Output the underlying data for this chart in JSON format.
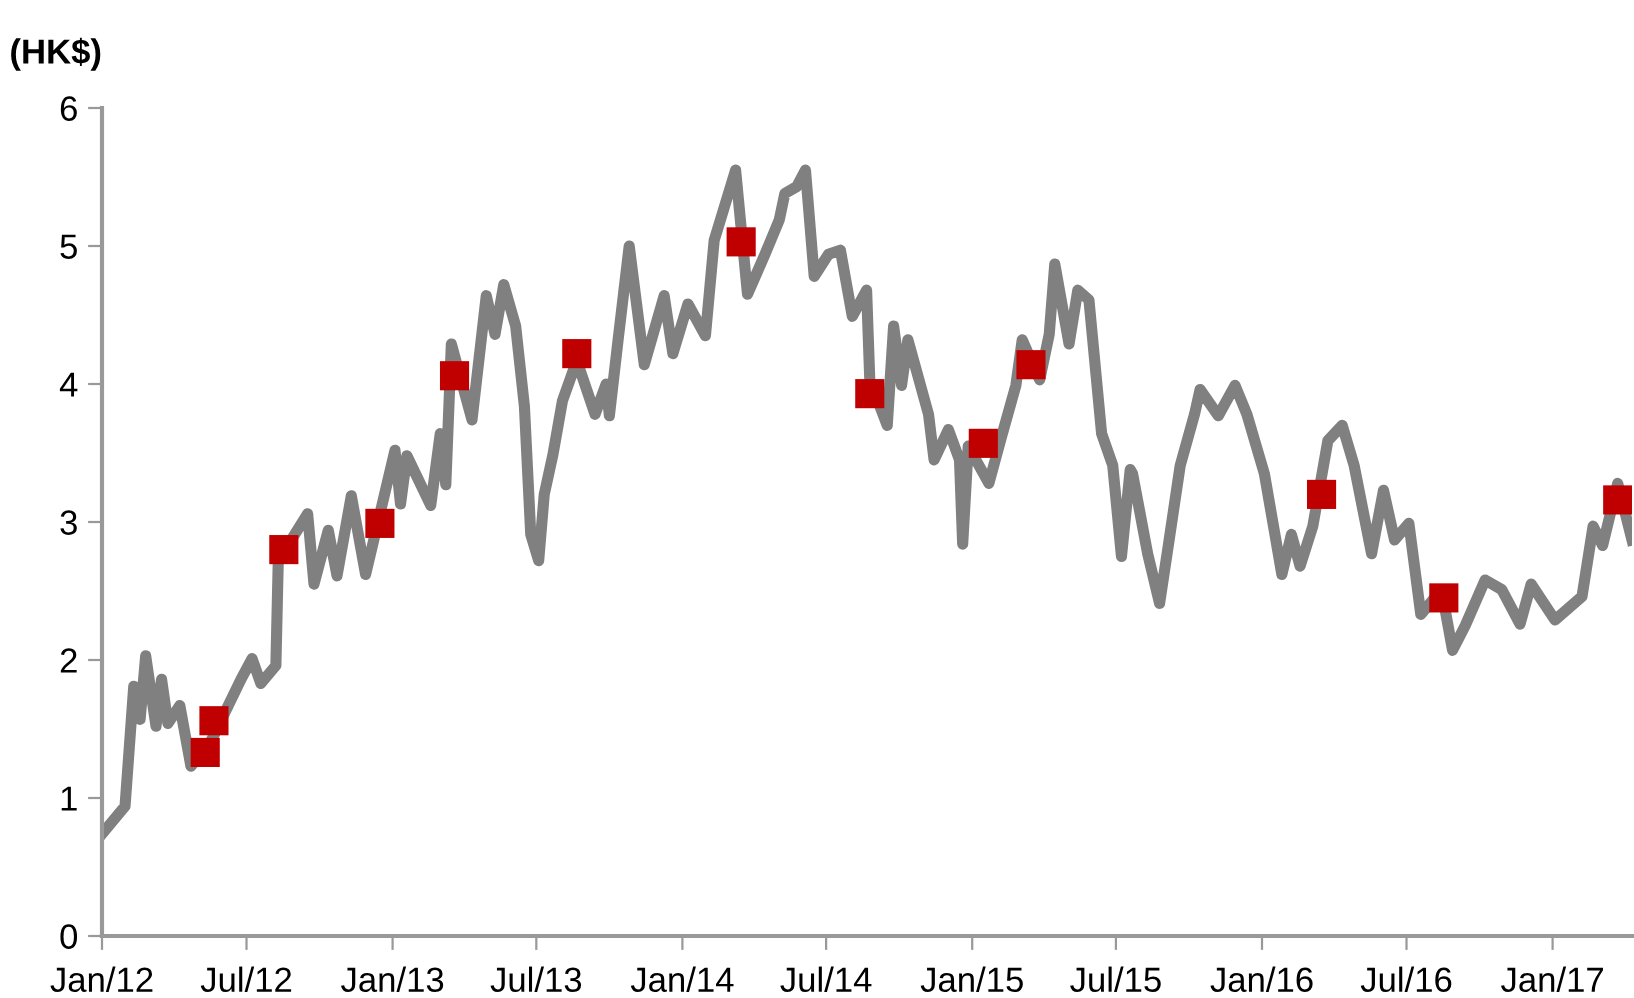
{
  "chart_data": {
    "type": "line",
    "ylabel": "(HK$)",
    "xlim": [
      "2012-01-01",
      "2017-04-11"
    ],
    "ylim": [
      0,
      6
    ],
    "yticks": [
      0,
      1,
      2,
      3,
      4,
      5,
      6
    ],
    "xticks": [
      {
        "value": "2012-01-01",
        "label": "Jan/12"
      },
      {
        "value": "2012-07-01",
        "label": "Jul/12"
      },
      {
        "value": "2013-01-01",
        "label": "Jan/13"
      },
      {
        "value": "2013-07-01",
        "label": "Jul/13"
      },
      {
        "value": "2014-01-01",
        "label": "Jan/14"
      },
      {
        "value": "2014-07-01",
        "label": "Jul/14"
      },
      {
        "value": "2015-01-01",
        "label": "Jan/15"
      },
      {
        "value": "2015-07-01",
        "label": "Jul/15"
      },
      {
        "value": "2016-01-01",
        "label": "Jan/16"
      },
      {
        "value": "2016-07-01",
        "label": "Jul/16"
      },
      {
        "value": "2017-01-01",
        "label": "Jan/17"
      }
    ],
    "grid": false,
    "legend": false,
    "series": [
      {
        "color": "#808080",
        "marker": "none",
        "line_style": "solid",
        "x": [
          "2012-01-01",
          "2012-01-30",
          "2012-02-10",
          "2012-02-18",
          "2012-02-25",
          "2012-03-09",
          "2012-03-16",
          "2012-03-24",
          "2012-04-08",
          "2012-04-22",
          "2012-05-18",
          "2012-06-24",
          "2012-07-08",
          "2012-07-19",
          "2012-08-07",
          "2012-08-10",
          "2012-09-16",
          "2012-09-24",
          "2012-10-12",
          "2012-10-23",
          "2012-11-10",
          "2012-11-28",
          "2013-01-04",
          "2013-01-11",
          "2013-01-19",
          "2013-02-18",
          "2013-03-02",
          "2013-03-09",
          "2013-03-16",
          "2013-04-11",
          "2013-04-29",
          "2013-05-10",
          "2013-05-21",
          "2013-06-05",
          "2013-06-16",
          "2013-06-24",
          "2013-07-04",
          "2013-07-11",
          "2013-07-22",
          "2013-08-03",
          "2013-08-21",
          "2013-09-13",
          "2013-09-27",
          "2013-10-01",
          "2013-10-12",
          "2013-10-26",
          "2013-11-14",
          "2013-12-09",
          "2013-12-20",
          "2014-01-08",
          "2014-01-30",
          "2014-02-10",
          "2014-03-09",
          "2014-03-24",
          "2014-04-15",
          "2014-05-03",
          "2014-05-10",
          "2014-05-25",
          "2014-06-05",
          "2014-06-16",
          "2014-07-04",
          "2014-07-19",
          "2014-08-03",
          "2014-08-21",
          "2014-08-25",
          "2014-09-16",
          "2014-09-24",
          "2014-10-04",
          "2014-10-12",
          "2014-11-07",
          "2014-11-14",
          "2014-12-02",
          "2014-12-16",
          "2014-12-20",
          "2014-12-27",
          "2015-01-22",
          "2015-02-07",
          "2015-02-25",
          "2015-03-05",
          "2015-03-27",
          "2015-04-08",
          "2015-04-15",
          "2015-05-03",
          "2015-05-14",
          "2015-05-28",
          "2015-06-13",
          "2015-06-27",
          "2015-07-08",
          "2015-07-19",
          "2015-07-22",
          "2015-08-10",
          "2015-08-25",
          "2015-09-05",
          "2015-09-20",
          "2015-10-08",
          "2015-10-15",
          "2015-11-07",
          "2015-11-28",
          "2015-12-13",
          "2016-01-04",
          "2016-01-26",
          "2016-02-07",
          "2016-02-18",
          "2016-03-05",
          "2016-03-24",
          "2016-04-11",
          "2016-04-26",
          "2016-05-18",
          "2016-06-02",
          "2016-06-16",
          "2016-07-04",
          "2016-07-19",
          "2016-08-14",
          "2016-08-28",
          "2016-09-13",
          "2016-10-08",
          "2016-10-29",
          "2016-11-21",
          "2016-12-05",
          "2017-01-04",
          "2017-02-07",
          "2017-02-21",
          "2017-03-05",
          "2017-03-24",
          "2017-04-11"
        ],
        "values": [
          0.74,
          0.94,
          1.81,
          1.57,
          2.03,
          1.52,
          1.86,
          1.54,
          1.67,
          1.23,
          1.42,
          1.86,
          2.01,
          1.83,
          1.96,
          2.72,
          3.06,
          2.55,
          2.94,
          2.61,
          3.19,
          2.62,
          3.52,
          3.13,
          3.48,
          3.12,
          3.64,
          3.27,
          4.29,
          3.74,
          4.64,
          4.36,
          4.72,
          4.42,
          3.84,
          2.91,
          2.72,
          3.2,
          3.49,
          3.88,
          4.17,
          3.78,
          4.0,
          3.77,
          4.32,
          5.0,
          4.14,
          4.64,
          4.22,
          4.58,
          4.35,
          5.04,
          5.55,
          4.65,
          4.94,
          5.19,
          5.38,
          5.43,
          5.55,
          4.78,
          4.94,
          4.97,
          4.49,
          4.68,
          4.03,
          3.7,
          4.42,
          3.99,
          4.32,
          3.78,
          3.45,
          3.67,
          3.45,
          2.84,
          3.55,
          3.28,
          3.62,
          3.99,
          4.32,
          4.03,
          4.36,
          4.87,
          4.29,
          4.68,
          4.61,
          3.64,
          3.41,
          2.75,
          3.38,
          3.35,
          2.77,
          2.41,
          2.83,
          3.41,
          3.78,
          3.96,
          3.77,
          3.99,
          3.78,
          3.35,
          2.62,
          2.91,
          2.68,
          2.97,
          3.59,
          3.7,
          3.41,
          2.77,
          3.23,
          2.87,
          2.99,
          2.33,
          2.51,
          2.07,
          2.25,
          2.58,
          2.51,
          2.26,
          2.55,
          2.29,
          2.46,
          2.97,
          2.83,
          3.28,
          2.87
        ]
      },
      {
        "type": "scatter",
        "color": "#c00000",
        "marker": "square",
        "x": [
          "2012-05-10",
          "2012-05-21",
          "2012-08-17",
          "2012-12-16",
          "2013-03-20",
          "2013-08-21",
          "2014-03-16",
          "2014-08-25",
          "2015-01-15",
          "2015-03-16",
          "2016-03-16",
          "2016-08-17",
          "2017-03-24"
        ],
        "values": [
          1.33,
          1.56,
          2.8,
          2.99,
          4.06,
          4.22,
          5.03,
          3.93,
          3.57,
          4.14,
          3.2,
          2.45,
          3.16
        ]
      }
    ]
  }
}
